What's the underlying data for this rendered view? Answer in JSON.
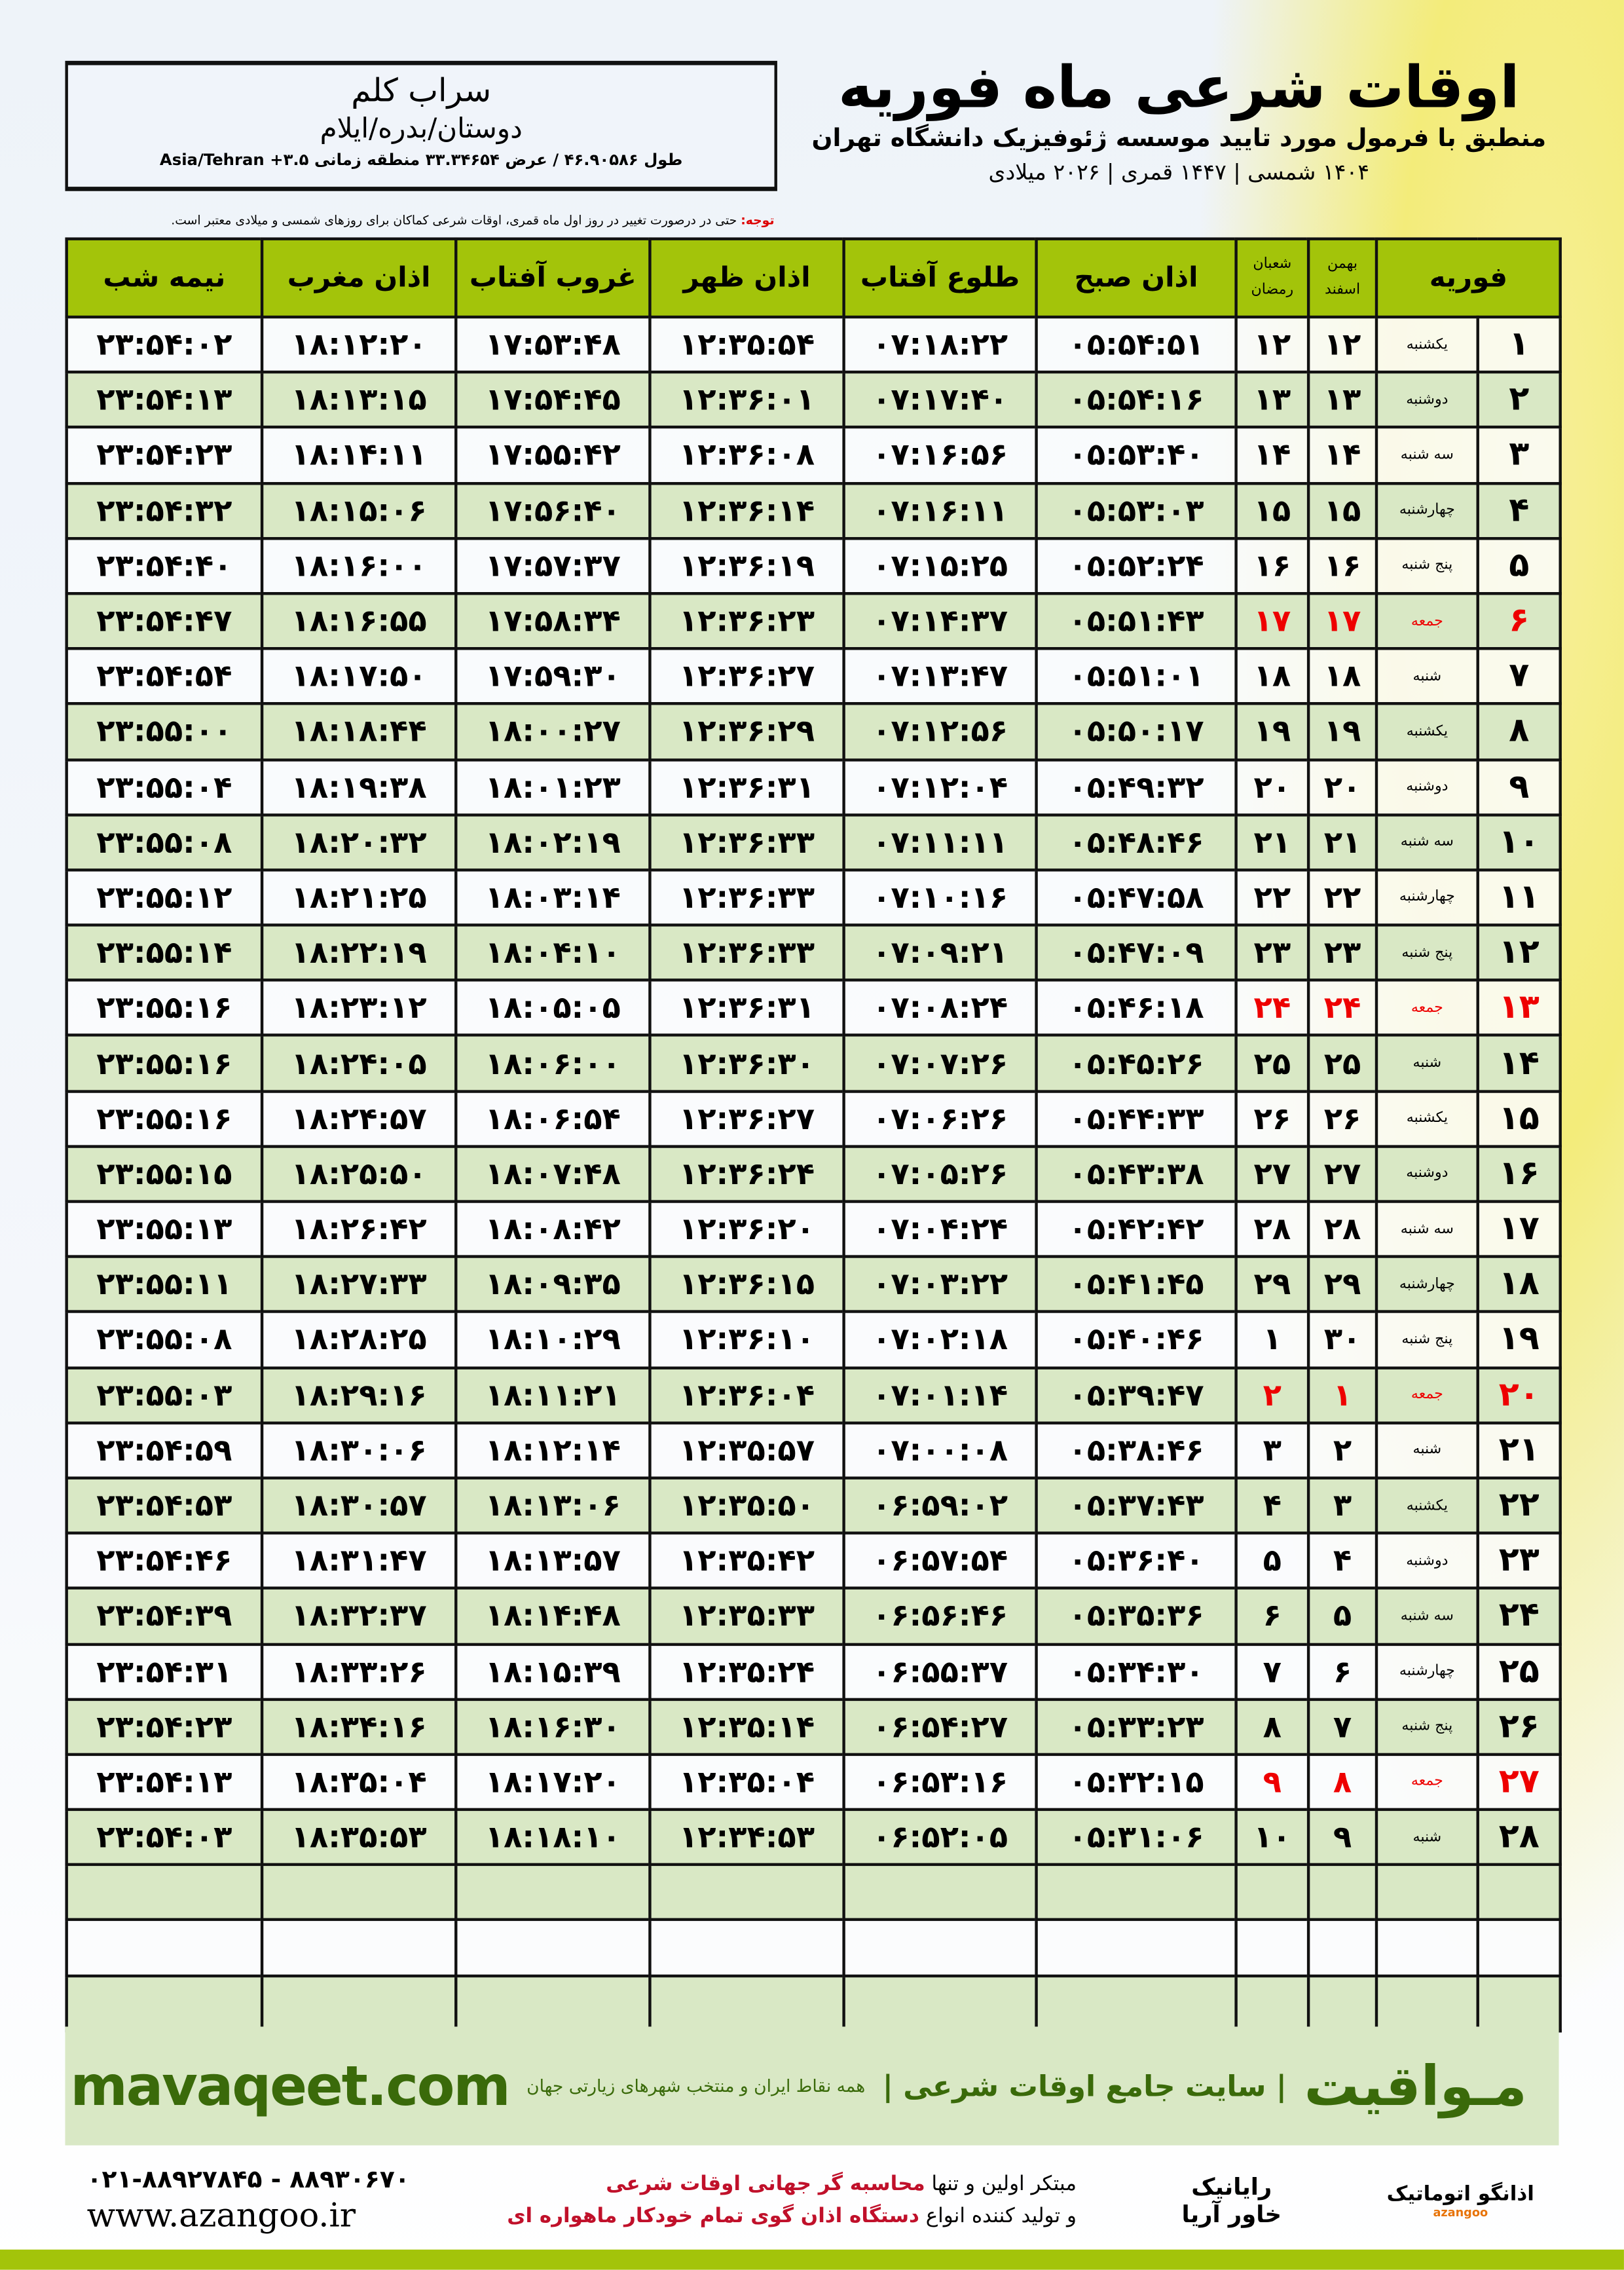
{
  "info": {
    "city": "سراب کلم",
    "region": "دوستان/بدره/ایلام",
    "coords": "طول ۴۶.۹۰۵۸۶ / عرض ۳۳.۳۴۶۵۴ منطقه زمانی ۳.۵+ Asia/Tehran"
  },
  "header": {
    "title": "اوقات شرعی ماه فوریه",
    "subtitle": "منطبق با فرمول مورد تایید موسسه ژئوفیزیک دانشگاه تهران",
    "dates": "۱۴۰۴ شمسی | ۱۴۴۷ قمری | ۲۰۲۶ میلادی"
  },
  "note": {
    "label": "توجه:",
    "text": " حتی در درصورت تغییر در روز اول ماه قمری، اوقات شرعی کماکان برای روزهای شمسی و میلادی معتبر است."
  },
  "columns": {
    "month": "فوریه",
    "shamsi_1": "بهمن",
    "shamsi_2": "اسفند",
    "qamari_1": "شعبان",
    "qamari_2": "رمضان",
    "subh": "اذان صبح",
    "tolu": "طلوع آفتاب",
    "zohr": "اذان ظهر",
    "ghurub": "غروب آفتاب",
    "maghrib": "اذان مغرب",
    "nimeshab": "نیمه شب"
  },
  "colors": {
    "header_green": "#a3c40a",
    "row_green": "#d9e8c5",
    "holiday_red": "#e00000",
    "brand_green": "#3a6a0a"
  },
  "rows": [
    [
      "۱",
      "یکشنبه",
      "۱۲",
      "۱۲",
      "۰۵:۵۴:۵۱",
      "۰۷:۱۸:۲۲",
      "۱۲:۳۵:۵۴",
      "۱۷:۵۳:۴۸",
      "۱۸:۱۲:۲۰",
      "۲۳:۵۴:۰۲",
      false
    ],
    [
      "۲",
      "دوشنبه",
      "۱۳",
      "۱۳",
      "۰۵:۵۴:۱۶",
      "۰۷:۱۷:۴۰",
      "۱۲:۳۶:۰۱",
      "۱۷:۵۴:۴۵",
      "۱۸:۱۳:۱۵",
      "۲۳:۵۴:۱۳",
      false
    ],
    [
      "۳",
      "سه شنبه",
      "۱۴",
      "۱۴",
      "۰۵:۵۳:۴۰",
      "۰۷:۱۶:۵۶",
      "۱۲:۳۶:۰۸",
      "۱۷:۵۵:۴۲",
      "۱۸:۱۴:۱۱",
      "۲۳:۵۴:۲۳",
      false
    ],
    [
      "۴",
      "چهارشنبه",
      "۱۵",
      "۱۵",
      "۰۵:۵۳:۰۳",
      "۰۷:۱۶:۱۱",
      "۱۲:۳۶:۱۴",
      "۱۷:۵۶:۴۰",
      "۱۸:۱۵:۰۶",
      "۲۳:۵۴:۳۲",
      false
    ],
    [
      "۵",
      "پنج شنبه",
      "۱۶",
      "۱۶",
      "۰۵:۵۲:۲۴",
      "۰۷:۱۵:۲۵",
      "۱۲:۳۶:۱۹",
      "۱۷:۵۷:۳۷",
      "۱۸:۱۶:۰۰",
      "۲۳:۵۴:۴۰",
      false
    ],
    [
      "۶",
      "جمعه",
      "۱۷",
      "۱۷",
      "۰۵:۵۱:۴۳",
      "۰۷:۱۴:۳۷",
      "۱۲:۳۶:۲۳",
      "۱۷:۵۸:۳۴",
      "۱۸:۱۶:۵۵",
      "۲۳:۵۴:۴۷",
      true
    ],
    [
      "۷",
      "شنبه",
      "۱۸",
      "۱۸",
      "۰۵:۵۱:۰۱",
      "۰۷:۱۳:۴۷",
      "۱۲:۳۶:۲۷",
      "۱۷:۵۹:۳۰",
      "۱۸:۱۷:۵۰",
      "۲۳:۵۴:۵۴",
      false
    ],
    [
      "۸",
      "یکشنبه",
      "۱۹",
      "۱۹",
      "۰۵:۵۰:۱۷",
      "۰۷:۱۲:۵۶",
      "۱۲:۳۶:۲۹",
      "۱۸:۰۰:۲۷",
      "۱۸:۱۸:۴۴",
      "۲۳:۵۵:۰۰",
      false
    ],
    [
      "۹",
      "دوشنبه",
      "۲۰",
      "۲۰",
      "۰۵:۴۹:۳۲",
      "۰۷:۱۲:۰۴",
      "۱۲:۳۶:۳۱",
      "۱۸:۰۱:۲۳",
      "۱۸:۱۹:۳۸",
      "۲۳:۵۵:۰۴",
      false
    ],
    [
      "۱۰",
      "سه شنبه",
      "۲۱",
      "۲۱",
      "۰۵:۴۸:۴۶",
      "۰۷:۱۱:۱۱",
      "۱۲:۳۶:۳۳",
      "۱۸:۰۲:۱۹",
      "۱۸:۲۰:۳۲",
      "۲۳:۵۵:۰۸",
      false
    ],
    [
      "۱۱",
      "چهارشنبه",
      "۲۲",
      "۲۲",
      "۰۵:۴۷:۵۸",
      "۰۷:۱۰:۱۶",
      "۱۲:۳۶:۳۳",
      "۱۸:۰۳:۱۴",
      "۱۸:۲۱:۲۵",
      "۲۳:۵۵:۱۲",
      false
    ],
    [
      "۱۲",
      "پنج شنبه",
      "۲۳",
      "۲۳",
      "۰۵:۴۷:۰۹",
      "۰۷:۰۹:۲۱",
      "۱۲:۳۶:۳۳",
      "۱۸:۰۴:۱۰",
      "۱۸:۲۲:۱۹",
      "۲۳:۵۵:۱۴",
      false
    ],
    [
      "۱۳",
      "جمعه",
      "۲۴",
      "۲۴",
      "۰۵:۴۶:۱۸",
      "۰۷:۰۸:۲۴",
      "۱۲:۳۶:۳۱",
      "۱۸:۰۵:۰۵",
      "۱۸:۲۳:۱۲",
      "۲۳:۵۵:۱۶",
      true
    ],
    [
      "۱۴",
      "شنبه",
      "۲۵",
      "۲۵",
      "۰۵:۴۵:۲۶",
      "۰۷:۰۷:۲۶",
      "۱۲:۳۶:۳۰",
      "۱۸:۰۶:۰۰",
      "۱۸:۲۴:۰۵",
      "۲۳:۵۵:۱۶",
      false
    ],
    [
      "۱۵",
      "یکشنبه",
      "۲۶",
      "۲۶",
      "۰۵:۴۴:۳۳",
      "۰۷:۰۶:۲۶",
      "۱۲:۳۶:۲۷",
      "۱۸:۰۶:۵۴",
      "۱۸:۲۴:۵۷",
      "۲۳:۵۵:۱۶",
      false
    ],
    [
      "۱۶",
      "دوشنبه",
      "۲۷",
      "۲۷",
      "۰۵:۴۳:۳۸",
      "۰۷:۰۵:۲۶",
      "۱۲:۳۶:۲۴",
      "۱۸:۰۷:۴۸",
      "۱۸:۲۵:۵۰",
      "۲۳:۵۵:۱۵",
      false
    ],
    [
      "۱۷",
      "سه شنبه",
      "۲۸",
      "۲۸",
      "۰۵:۴۲:۴۲",
      "۰۷:۰۴:۲۴",
      "۱۲:۳۶:۲۰",
      "۱۸:۰۸:۴۲",
      "۱۸:۲۶:۴۲",
      "۲۳:۵۵:۱۳",
      false
    ],
    [
      "۱۸",
      "چهارشنبه",
      "۲۹",
      "۲۹",
      "۰۵:۴۱:۴۵",
      "۰۷:۰۳:۲۲",
      "۱۲:۳۶:۱۵",
      "۱۸:۰۹:۳۵",
      "۱۸:۲۷:۳۳",
      "۲۳:۵۵:۱۱",
      false
    ],
    [
      "۱۹",
      "پنج شنبه",
      "۳۰",
      "۱",
      "۰۵:۴۰:۴۶",
      "۰۷:۰۲:۱۸",
      "۱۲:۳۶:۱۰",
      "۱۸:۱۰:۲۹",
      "۱۸:۲۸:۲۵",
      "۲۳:۵۵:۰۸",
      false
    ],
    [
      "۲۰",
      "جمعه",
      "۱",
      "۲",
      "۰۵:۳۹:۴۷",
      "۰۷:۰۱:۱۴",
      "۱۲:۳۶:۰۴",
      "۱۸:۱۱:۲۱",
      "۱۸:۲۹:۱۶",
      "۲۳:۵۵:۰۳",
      true
    ],
    [
      "۲۱",
      "شنبه",
      "۲",
      "۳",
      "۰۵:۳۸:۴۶",
      "۰۷:۰۰:۰۸",
      "۱۲:۳۵:۵۷",
      "۱۸:۱۲:۱۴",
      "۱۸:۳۰:۰۶",
      "۲۳:۵۴:۵۹",
      false
    ],
    [
      "۲۲",
      "یکشنبه",
      "۳",
      "۴",
      "۰۵:۳۷:۴۳",
      "۰۶:۵۹:۰۲",
      "۱۲:۳۵:۵۰",
      "۱۸:۱۳:۰۶",
      "۱۸:۳۰:۵۷",
      "۲۳:۵۴:۵۳",
      false
    ],
    [
      "۲۳",
      "دوشنبه",
      "۴",
      "۵",
      "۰۵:۳۶:۴۰",
      "۰۶:۵۷:۵۴",
      "۱۲:۳۵:۴۲",
      "۱۸:۱۳:۵۷",
      "۱۸:۳۱:۴۷",
      "۲۳:۵۴:۴۶",
      false
    ],
    [
      "۲۴",
      "سه شنبه",
      "۵",
      "۶",
      "۰۵:۳۵:۳۶",
      "۰۶:۵۶:۴۶",
      "۱۲:۳۵:۳۳",
      "۱۸:۱۴:۴۸",
      "۱۸:۳۲:۳۷",
      "۲۳:۵۴:۳۹",
      false
    ],
    [
      "۲۵",
      "چهارشنبه",
      "۶",
      "۷",
      "۰۵:۳۴:۳۰",
      "۰۶:۵۵:۳۷",
      "۱۲:۳۵:۲۴",
      "۱۸:۱۵:۳۹",
      "۱۸:۳۳:۲۶",
      "۲۳:۵۴:۳۱",
      false
    ],
    [
      "۲۶",
      "پنج شنبه",
      "۷",
      "۸",
      "۰۵:۳۳:۲۳",
      "۰۶:۵۴:۲۷",
      "۱۲:۳۵:۱۴",
      "۱۸:۱۶:۳۰",
      "۱۸:۳۴:۱۶",
      "۲۳:۵۴:۲۳",
      false
    ],
    [
      "۲۷",
      "جمعه",
      "۸",
      "۹",
      "۰۵:۳۲:۱۵",
      "۰۶:۵۳:۱۶",
      "۱۲:۳۵:۰۴",
      "۱۸:۱۷:۲۰",
      "۱۸:۳۵:۰۴",
      "۲۳:۵۴:۱۳",
      true
    ],
    [
      "۲۸",
      "شنبه",
      "۹",
      "۱۰",
      "۰۵:۳۱:۰۶",
      "۰۶:۵۲:۰۵",
      "۱۲:۳۴:۵۳",
      "۱۸:۱۸:۱۰",
      "۱۸:۳۵:۵۳",
      "۲۳:۵۴:۰۳",
      false
    ]
  ],
  "footer": {
    "brand": "مـواقیت",
    "slogan": "| سایت جامع اوقات شرعی |",
    "slogan2": "همه نقاط ایران و منتخب شهرهای زیارتی جهان",
    "site": "mavaqeet.com"
  },
  "bottom": {
    "phone": "۰۲۱-۸۸۹۲۷۸۴۵ - ۸۸۹۳۰۶۷۰",
    "web": "www.azangoo.ir",
    "promo1a": "مبتکر اولین و تنها ",
    "promo1b": "محاسبه گر جهانی اوقات شرعی",
    "promo2a": "و تولید کننده انواع ",
    "promo2b": "دستگاه اذان گوی تمام خودکار ماهواره ای",
    "logo_rayanik": "رایانیک خاور آریا",
    "logo_azangoo": "اذانگو اتوماتیک",
    "logo_azangoo_en": "azangoo"
  }
}
